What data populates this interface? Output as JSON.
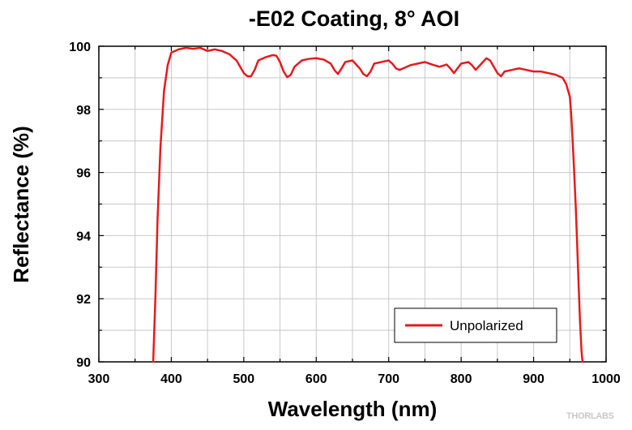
{
  "chart_data": {
    "type": "line",
    "title": "-E02 Coating, 8° AOI",
    "xlabel": "Wavelength (nm)",
    "ylabel": "Reflectance (%)",
    "xlim": [
      300,
      1000
    ],
    "ylim": [
      90,
      100
    ],
    "xticks": [
      300,
      400,
      500,
      600,
      700,
      800,
      900,
      1000
    ],
    "yticks": [
      90,
      92,
      94,
      96,
      98,
      100
    ],
    "grid": true,
    "legend_position": "bottom-right",
    "series": [
      {
        "name": "Unpolarized",
        "color": "#e8191b",
        "x": [
          375,
          378,
          381,
          385,
          390,
          395,
          400,
          405,
          410,
          420,
          430,
          440,
          450,
          460,
          470,
          480,
          490,
          500,
          505,
          510,
          515,
          520,
          530,
          540,
          545,
          550,
          555,
          560,
          565,
          570,
          580,
          590,
          600,
          610,
          620,
          625,
          630,
          635,
          640,
          650,
          660,
          665,
          670,
          675,
          680,
          690,
          700,
          705,
          710,
          715,
          720,
          730,
          740,
          750,
          760,
          770,
          780,
          785,
          790,
          795,
          800,
          810,
          815,
          820,
          830,
          835,
          840,
          845,
          850,
          855,
          860,
          870,
          880,
          890,
          900,
          910,
          920,
          930,
          940,
          945,
          950,
          952,
          955,
          958,
          960,
          962,
          964,
          966,
          967,
          968
        ],
        "y": [
          90.0,
          92.0,
          94.5,
          96.8,
          98.6,
          99.4,
          99.8,
          99.85,
          99.9,
          99.95,
          99.92,
          99.95,
          99.85,
          99.9,
          99.85,
          99.75,
          99.55,
          99.15,
          99.05,
          99.05,
          99.25,
          99.55,
          99.65,
          99.72,
          99.7,
          99.5,
          99.2,
          99.02,
          99.1,
          99.35,
          99.55,
          99.6,
          99.62,
          99.58,
          99.45,
          99.25,
          99.12,
          99.3,
          99.5,
          99.55,
          99.3,
          99.12,
          99.05,
          99.2,
          99.45,
          99.5,
          99.55,
          99.45,
          99.3,
          99.25,
          99.3,
          99.4,
          99.45,
          99.5,
          99.42,
          99.35,
          99.42,
          99.3,
          99.15,
          99.3,
          99.45,
          99.5,
          99.4,
          99.25,
          99.5,
          99.62,
          99.55,
          99.35,
          99.15,
          99.05,
          99.2,
          99.25,
          99.3,
          99.25,
          99.2,
          99.2,
          99.15,
          99.1,
          99.0,
          98.8,
          98.4,
          97.8,
          96.5,
          95.0,
          93.8,
          92.5,
          91.3,
          90.4,
          90.1,
          90.0
        ]
      }
    ]
  },
  "logo": {
    "text": "THORLABS"
  }
}
